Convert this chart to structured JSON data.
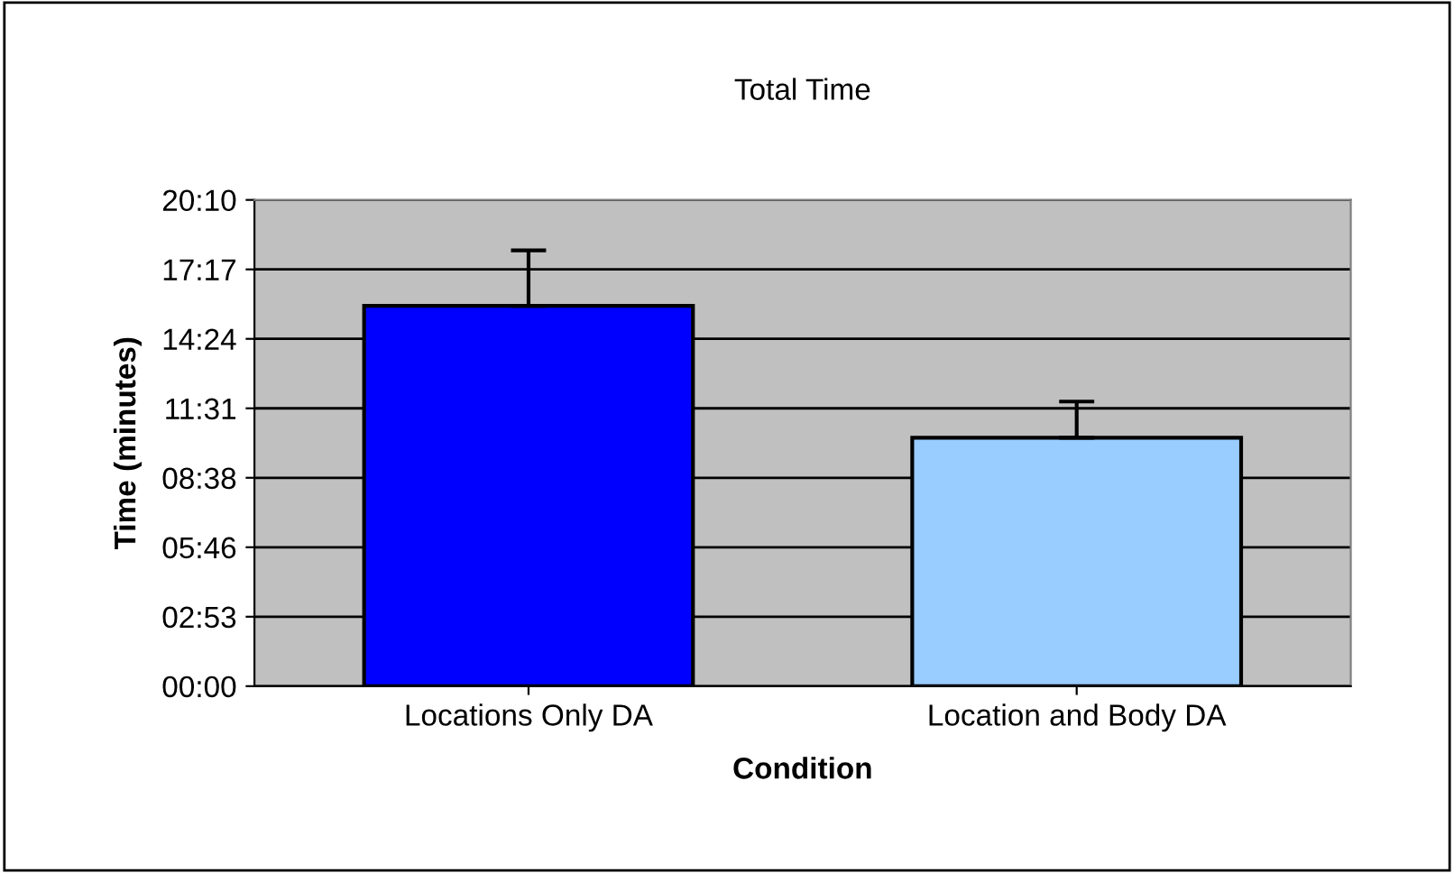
{
  "chart_data": {
    "type": "bar",
    "title": "Total Time",
    "xlabel": "Condition",
    "ylabel": "Time (minutes)",
    "categories": [
      "Locations Only DA",
      "Location and Body DA"
    ],
    "values": [
      15.77,
      10.3
    ],
    "colors": [
      "#0000ff",
      "#99ccff"
    ],
    "errors": [
      [
        15.77,
        18.07
      ],
      [
        10.3,
        11.8
      ]
    ],
    "ylim": [
      0,
      20.16
    ],
    "yticks": [
      {
        "value": 0,
        "label": "00:00"
      },
      {
        "value": 2.88,
        "label": "02:53"
      },
      {
        "value": 5.76,
        "label": "05:46"
      },
      {
        "value": 8.64,
        "label": "08:38"
      },
      {
        "value": 11.52,
        "label": "11:31"
      },
      {
        "value": 14.4,
        "label": "14:24"
      },
      {
        "value": 17.28,
        "label": "17:17"
      },
      {
        "value": 20.16,
        "label": "20:10"
      }
    ],
    "grid": "y",
    "legend": false
  }
}
